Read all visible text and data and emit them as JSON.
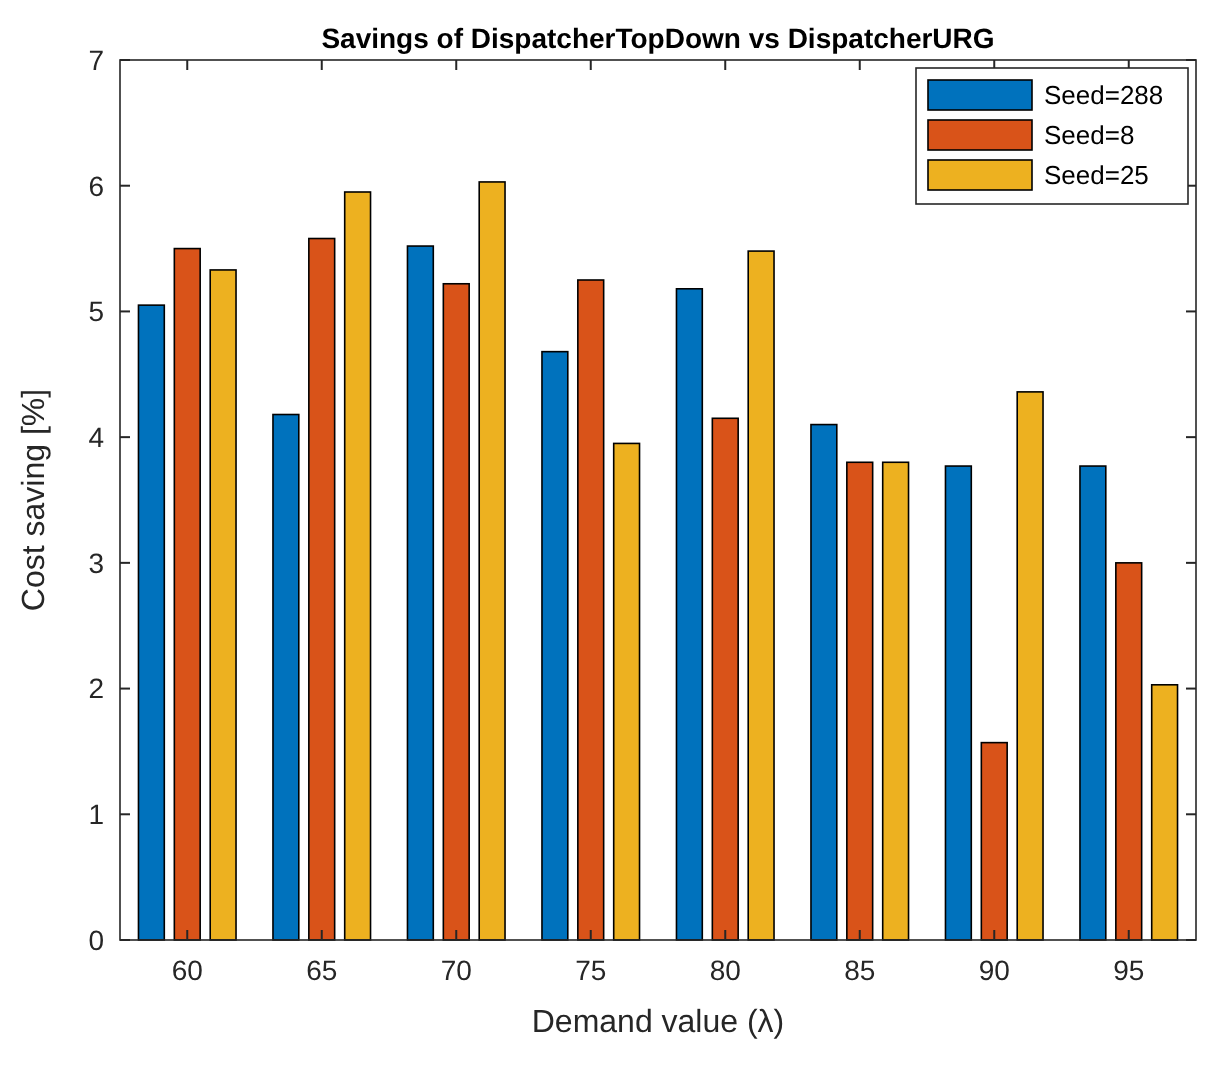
{
  "chart_data": {
    "type": "bar",
    "title": "Savings of DispatcherTopDown vs DispatcherURG",
    "xlabel": "Demand value (λ)",
    "ylabel": "Cost saving [%]",
    "categories": [
      "60",
      "65",
      "70",
      "75",
      "80",
      "85",
      "90",
      "95"
    ],
    "series": [
      {
        "name": "Seed=288",
        "color": "#0072bd",
        "values": [
          5.05,
          4.18,
          5.52,
          4.68,
          5.18,
          4.1,
          3.77,
          3.77
        ]
      },
      {
        "name": "Seed=8",
        "color": "#d95319",
        "values": [
          5.5,
          5.58,
          5.22,
          5.25,
          4.15,
          3.8,
          1.57,
          3.0
        ]
      },
      {
        "name": "Seed=25",
        "color": "#edb120",
        "values": [
          5.33,
          5.95,
          6.03,
          3.95,
          5.48,
          3.8,
          4.36,
          2.03
        ]
      }
    ],
    "ylim": [
      0,
      7
    ],
    "yticks": [
      0,
      1,
      2,
      3,
      4,
      5,
      6,
      7
    ],
    "grid": false,
    "legend": "top right"
  }
}
